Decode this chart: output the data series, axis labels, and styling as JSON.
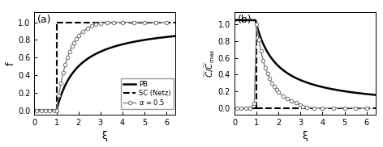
{
  "panel_a": {
    "label": "(a)",
    "xlabel": "ξ",
    "ylabel": "f",
    "xlim": [
      0,
      6.4
    ],
    "ylim": [
      -0.05,
      1.12
    ],
    "xticks": [
      0,
      1,
      2,
      3,
      4,
      5,
      6
    ],
    "yticks": [
      0.0,
      0.2,
      0.4,
      0.6,
      0.8,
      1.0
    ]
  },
  "panel_b": {
    "label": "(b)",
    "xlabel": "ξ",
    "xlim": [
      0,
      6.4
    ],
    "ylim": [
      -0.08,
      1.15
    ],
    "xticks": [
      0,
      1,
      2,
      3,
      4,
      5,
      6
    ],
    "yticks": [
      0.0,
      0.2,
      0.4,
      0.6,
      0.8,
      1.0
    ]
  },
  "alpha_a_xi": [
    0.1,
    0.3,
    0.5,
    0.7,
    0.9,
    1.0,
    1.1,
    1.2,
    1.3,
    1.4,
    1.5,
    1.6,
    1.7,
    1.8,
    1.9,
    2.0,
    2.2,
    2.4,
    2.6,
    2.8,
    3.0,
    3.3,
    3.6,
    4.0,
    4.5,
    5.0,
    5.5,
    6.0
  ],
  "alpha_a_f": [
    0.0,
    0.0,
    0.0,
    0.0,
    0.0,
    0.0,
    0.17,
    0.31,
    0.43,
    0.52,
    0.6,
    0.67,
    0.73,
    0.77,
    0.81,
    0.85,
    0.9,
    0.93,
    0.96,
    0.98,
    0.99,
    1.0,
    1.0,
    1.0,
    1.0,
    1.0,
    1.0,
    1.0
  ],
  "alpha_b_xi": [
    0.1,
    0.3,
    0.5,
    0.7,
    0.9,
    1.0,
    1.1,
    1.2,
    1.3,
    1.4,
    1.5,
    1.6,
    1.7,
    1.8,
    1.9,
    2.0,
    2.2,
    2.4,
    2.6,
    2.8,
    3.0,
    3.1,
    3.3,
    3.6,
    4.0,
    4.5,
    5.0,
    5.5,
    6.0
  ],
  "alpha_b_cv": [
    0.0,
    0.0,
    0.0,
    0.0,
    0.05,
    1.0,
    0.82,
    0.68,
    0.57,
    0.48,
    0.41,
    0.35,
    0.3,
    0.26,
    0.22,
    0.19,
    0.14,
    0.11,
    0.08,
    0.06,
    0.04,
    0.02,
    0.01,
    0.0,
    0.0,
    0.0,
    0.0,
    0.0,
    0.0
  ]
}
